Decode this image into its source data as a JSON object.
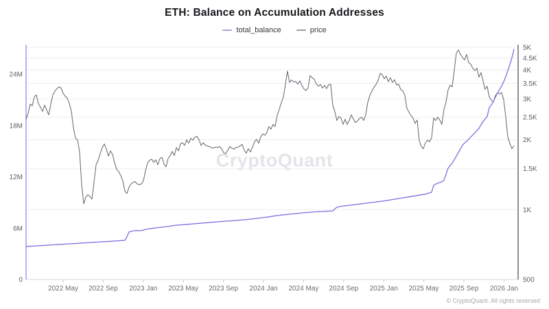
{
  "header": {
    "title": "ETH: Balance on Accumulation Addresses"
  },
  "legend": {
    "items": [
      {
        "label": "total_balance",
        "swatch": "#a9a2e6"
      },
      {
        "label": "price",
        "swatch": "#9a99a4"
      }
    ]
  },
  "watermark": "CryptoQuant",
  "attribution": "© CryptoQuant. All rights reserved",
  "chart_data": {
    "type": "line",
    "title": "ETH: Balance on Accumulation Addresses",
    "grid": "horizontal-on-right-axis-ticks",
    "legend_position": "top-center",
    "x_axis": {
      "unit": "date (decimal year)",
      "range": [
        2022.025,
        2026.083
      ],
      "ticks": [
        {
          "v": 2022.3333,
          "label": "2022 May"
        },
        {
          "v": 2022.6667,
          "label": "2022 Sep"
        },
        {
          "v": 2023.0,
          "label": "2023 Jan"
        },
        {
          "v": 2023.3333,
          "label": "2023 May"
        },
        {
          "v": 2023.6667,
          "label": "2023 Sep"
        },
        {
          "v": 2024.0,
          "label": "2024 Jan"
        },
        {
          "v": 2024.3333,
          "label": "2024 May"
        },
        {
          "v": 2024.6667,
          "label": "2024 Sep"
        },
        {
          "v": 2025.0,
          "label": "2025 Jan"
        },
        {
          "v": 2025.3333,
          "label": "2025 May"
        },
        {
          "v": 2025.6667,
          "label": "2025 Sep"
        },
        {
          "v": 2026.0,
          "label": "2026 Jan"
        }
      ]
    },
    "y_left": {
      "unit": "ETH balance (millions)",
      "scale": "linear",
      "range": [
        0,
        27.45
      ],
      "ticks": [
        {
          "v": 0,
          "label": "0"
        },
        {
          "v": 6,
          "label": "6M"
        },
        {
          "v": 12,
          "label": "12M"
        },
        {
          "v": 18,
          "label": "18M"
        },
        {
          "v": 24,
          "label": "24M"
        }
      ]
    },
    "y_right": {
      "unit": "ETH price (USD)",
      "scale": "log",
      "range": [
        500,
        5139
      ],
      "ticks": [
        {
          "v": 500,
          "label": "500"
        },
        {
          "v": 1000,
          "label": "1K"
        },
        {
          "v": 1500,
          "label": "1.5K"
        },
        {
          "v": 2000,
          "label": "2K"
        },
        {
          "v": 2500,
          "label": "2.5K"
        },
        {
          "v": 3000,
          "label": "3K"
        },
        {
          "v": 3500,
          "label": "3.5K"
        },
        {
          "v": 4000,
          "label": "4K"
        },
        {
          "v": 4500,
          "label": "4.5K"
        },
        {
          "v": 5000,
          "label": "5K"
        }
      ]
    },
    "series": [
      {
        "name": "total_balance",
        "axis": "left",
        "color": "#7b6fe0",
        "width": 1.3,
        "start": 2022.025,
        "step": 0.01712,
        "values": [
          3.85,
          3.87,
          3.88,
          3.9,
          3.91,
          3.93,
          3.94,
          3.96,
          3.97,
          3.99,
          4.0,
          4.02,
          4.03,
          4.05,
          4.06,
          4.08,
          4.09,
          4.11,
          4.12,
          4.14,
          4.15,
          4.17,
          4.18,
          4.2,
          4.21,
          4.23,
          4.24,
          4.26,
          4.27,
          4.29,
          4.3,
          4.32,
          4.33,
          4.35,
          4.36,
          4.38,
          4.39,
          4.41,
          4.42,
          4.44,
          4.45,
          4.47,
          4.48,
          4.5,
          4.51,
          4.53,
          4.54,
          4.56,
          4.57,
          5.0,
          5.55,
          5.62,
          5.68,
          5.7,
          5.72,
          5.7,
          5.73,
          5.76,
          5.86,
          5.9,
          5.93,
          5.96,
          6.0,
          6.03,
          6.06,
          6.09,
          6.12,
          6.15,
          6.17,
          6.2,
          6.23,
          6.28,
          6.31,
          6.34,
          6.36,
          6.38,
          6.4,
          6.42,
          6.44,
          6.46,
          6.48,
          6.5,
          6.52,
          6.54,
          6.56,
          6.58,
          6.6,
          6.62,
          6.64,
          6.66,
          6.68,
          6.7,
          6.72,
          6.74,
          6.76,
          6.78,
          6.8,
          6.82,
          6.83,
          6.85,
          6.86,
          6.88,
          6.9,
          6.92,
          6.94,
          6.96,
          6.98,
          7.0,
          7.03,
          7.06,
          7.08,
          7.11,
          7.14,
          7.17,
          7.2,
          7.23,
          7.26,
          7.29,
          7.32,
          7.36,
          7.4,
          7.44,
          7.47,
          7.5,
          7.53,
          7.56,
          7.58,
          7.61,
          7.63,
          7.66,
          7.68,
          7.7,
          7.73,
          7.75,
          7.78,
          7.8,
          7.82,
          7.84,
          7.86,
          7.88,
          7.9,
          7.91,
          7.93,
          7.94,
          7.95,
          7.96,
          7.97,
          7.99,
          8.0,
          8.02,
          8.25,
          8.45,
          8.5,
          8.54,
          8.58,
          8.61,
          8.64,
          8.67,
          8.7,
          8.73,
          8.76,
          8.79,
          8.82,
          8.85,
          8.88,
          8.91,
          8.94,
          8.97,
          9.0,
          9.03,
          9.06,
          9.09,
          9.12,
          9.15,
          9.18,
          9.22,
          9.26,
          9.3,
          9.34,
          9.38,
          9.42,
          9.46,
          9.5,
          9.54,
          9.58,
          9.62,
          9.66,
          9.7,
          9.74,
          9.78,
          9.82,
          9.86,
          9.9,
          9.94,
          9.98,
          10.05,
          10.12,
          10.19,
          11.0,
          11.16,
          11.25,
          11.33,
          11.42,
          11.6,
          12.3,
          13.0,
          13.3,
          13.6,
          14.0,
          14.4,
          14.85,
          15.25,
          15.7,
          15.95,
          16.15,
          16.4,
          16.65,
          16.9,
          17.15,
          17.4,
          17.65,
          18.1,
          18.45,
          18.75,
          19.05,
          20.1,
          20.4,
          20.8,
          21.3,
          21.8,
          22.2,
          22.6,
          23.1,
          23.7,
          24.4,
          25.1,
          25.9,
          26.9
        ]
      },
      {
        "name": "price",
        "axis": "right",
        "color": "#62626d",
        "width": 1,
        "start": 2022.025,
        "step": 0.01712,
        "values": [
          2450,
          2600,
          2850,
          2800,
          3060,
          3120,
          2860,
          2760,
          2650,
          2820,
          2690,
          2560,
          2840,
          3120,
          3240,
          3320,
          3380,
          3340,
          3170,
          3080,
          3020,
          2870,
          2650,
          2250,
          2030,
          2000,
          1770,
          1280,
          1060,
          1130,
          1160,
          1140,
          1110,
          1310,
          1560,
          1630,
          1740,
          1850,
          1920,
          1820,
          1700,
          1790,
          1730,
          1590,
          1490,
          1460,
          1400,
          1330,
          1200,
          1175,
          1250,
          1290,
          1310,
          1320,
          1290,
          1280,
          1290,
          1330,
          1470,
          1590,
          1630,
          1650,
          1600,
          1640,
          1560,
          1660,
          1680,
          1570,
          1530,
          1660,
          1710,
          1780,
          1710,
          1850,
          1790,
          1920,
          1940,
          1890,
          2000,
          1930,
          2030,
          1990,
          2050,
          2070,
          2000,
          1890,
          1940,
          1900,
          1880,
          1870,
          1850,
          1840,
          1860,
          1850,
          1870,
          1830,
          1760,
          1740,
          1800,
          1870,
          1840,
          1820,
          1850,
          1860,
          1880,
          1910,
          1800,
          1750,
          1830,
          1770,
          1860,
          1960,
          2010,
          1930,
          2060,
          2120,
          2090,
          2150,
          2280,
          2220,
          2330,
          2280,
          2550,
          2700,
          2890,
          3050,
          3460,
          3950,
          3530,
          3620,
          3550,
          3570,
          3470,
          3590,
          3430,
          3310,
          3260,
          3350,
          3780,
          3700,
          3640,
          3480,
          3400,
          3460,
          3340,
          3430,
          3320,
          3450,
          3470,
          2810,
          2650,
          2420,
          2520,
          2480,
          2330,
          2450,
          2330,
          2420,
          2560,
          2460,
          2370,
          2410,
          2470,
          2500,
          2420,
          2560,
          2900,
          3100,
          3240,
          3360,
          3460,
          3600,
          3860,
          3820,
          3660,
          3760,
          3560,
          3700,
          3530,
          3630,
          3440,
          3470,
          3290,
          3250,
          3110,
          2730,
          2630,
          2540,
          2480,
          2350,
          2430,
          1980,
          1870,
          1830,
          1940,
          1990,
          1960,
          2040,
          2480,
          2420,
          2500,
          2430,
          2330,
          2700,
          2900,
          3270,
          3440,
          3380,
          3970,
          4720,
          4870,
          4660,
          4530,
          4410,
          4660,
          4300,
          4230,
          4070,
          3970,
          4070,
          3720,
          3890,
          3580,
          3300,
          3400,
          3060,
          2960,
          2910,
          3100,
          3180,
          3150,
          3200,
          2980,
          2520,
          2060,
          1930,
          1830,
          1880
        ]
      }
    ]
  }
}
